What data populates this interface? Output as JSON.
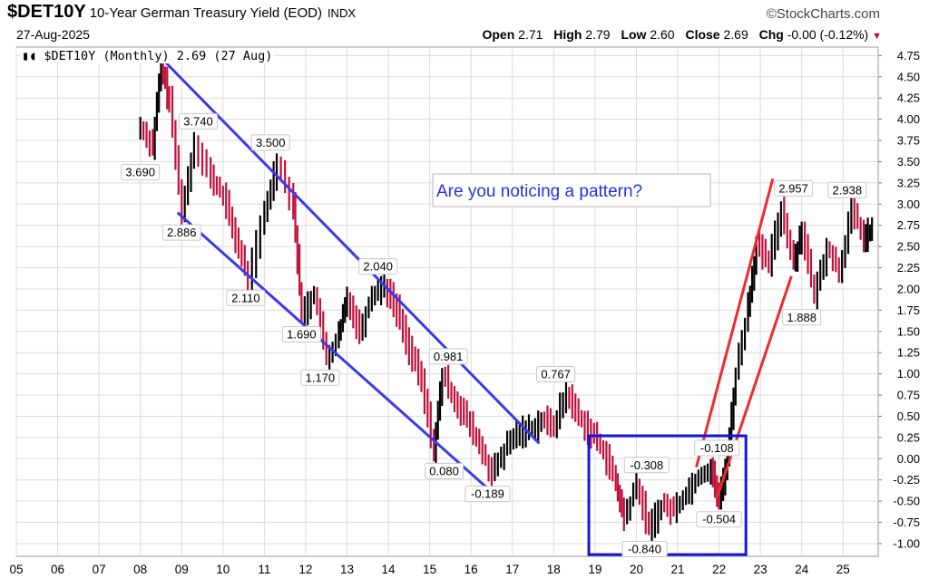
{
  "header": {
    "symbol": "$DET10Y",
    "name": "10-Year German Treasury Yield (EOD)",
    "exchange": "INDX",
    "brand": "©StockCharts.com",
    "date": "27-Aug-2025",
    "open_label": "Open",
    "open_value": "2.71",
    "high_label": "High",
    "high_value": "2.79",
    "low_label": "Low",
    "low_value": "2.60",
    "close_label": "Close",
    "close_value": "2.69",
    "chg_label": "Chg",
    "chg_value": "-0.00 (-0.12%)"
  },
  "legend": {
    "text": "$DET10Y (Monthly) 2.69 (27 Aug)"
  },
  "callout": {
    "text": "Are you noticing a pattern?"
  },
  "colors": {
    "up": "#000000",
    "down": "#c0103a",
    "channel": "#3a3aeb",
    "trend": "#ee2b2b",
    "box": "#1515e0",
    "callout_text": "#2233dd"
  },
  "chart_data": {
    "type": "line",
    "title": "$DET10Y (Monthly) 2.69 (27 Aug)",
    "xlabel": "",
    "ylabel": "",
    "x_tick_labels": [
      "05",
      "06",
      "07",
      "08",
      "09",
      "10",
      "11",
      "12",
      "13",
      "14",
      "15",
      "16",
      "17",
      "18",
      "19",
      "20",
      "21",
      "22",
      "23",
      "24",
      "25"
    ],
    "y_tick_labels": [
      "4.75",
      "4.50",
      "4.25",
      "4.00",
      "3.75",
      "3.50",
      "3.25",
      "3.00",
      "2.75",
      "2.50",
      "2.25",
      "2.00",
      "1.75",
      "1.50",
      "1.25",
      "1.00",
      "0.75",
      "0.50",
      "0.25",
      "0.00",
      "-0.25",
      "-0.50",
      "-0.75",
      "-1.00"
    ],
    "ylim": [
      -1.15,
      4.85
    ],
    "xlim": [
      2005.0,
      2025.85
    ],
    "grid": true,
    "series": [
      {
        "x": [
          2008.0,
          2008.3,
          2008.5,
          2008.7,
          2009.0,
          2009.3,
          2009.7,
          2010.0,
          2010.3,
          2010.6,
          2011.0,
          2011.3,
          2011.7,
          2011.9,
          2012.2,
          2012.5,
          2012.8,
          2013.0,
          2013.3,
          2013.6,
          2013.9,
          2014.2,
          2014.5,
          2014.8,
          2015.1,
          2015.3,
          2015.6,
          2015.9,
          2016.2,
          2016.5,
          2016.8,
          2017.1,
          2017.4,
          2017.7,
          2018.0,
          2018.3,
          2018.6,
          2018.9,
          2019.2,
          2019.5,
          2019.7,
          2020.0,
          2020.3,
          2020.6,
          2020.9,
          2021.2,
          2021.5,
          2021.8,
          2022.0,
          2022.2,
          2022.4,
          2022.7,
          2022.9,
          2023.2,
          2023.5,
          2023.8,
          2024.0,
          2024.3,
          2024.6,
          2024.9,
          2025.2,
          2025.5,
          2025.7
        ],
        "y": [
          3.9,
          3.69,
          4.65,
          4.2,
          2.88,
          3.74,
          3.3,
          3.1,
          2.6,
          2.11,
          2.9,
          3.5,
          3.0,
          1.69,
          1.95,
          1.17,
          1.45,
          1.9,
          1.5,
          1.95,
          2.04,
          1.75,
          1.3,
          0.9,
          0.08,
          0.98,
          0.7,
          0.45,
          0.15,
          -0.189,
          0.1,
          0.3,
          0.35,
          0.45,
          0.4,
          0.767,
          0.5,
          0.3,
          0.1,
          -0.3,
          -0.7,
          -0.308,
          -0.84,
          -0.55,
          -0.6,
          -0.4,
          -0.2,
          -0.108,
          -0.504,
          0.0,
          1.0,
          1.8,
          2.5,
          2.3,
          2.95,
          2.3,
          2.7,
          1.888,
          2.5,
          2.2,
          2.938,
          2.6,
          2.69
        ],
        "color": "#c0103a"
      }
    ],
    "annotations": [
      "3.690",
      "3.740",
      "2.886",
      "3.500",
      "2.110",
      "1.690",
      "1.170",
      "2.040",
      "0.981",
      "0.080",
      "-0.189",
      "0.767",
      "-0.308",
      "-0.840",
      "-0.108",
      "-0.504",
      "2.957",
      "1.888",
      "2.938"
    ]
  }
}
